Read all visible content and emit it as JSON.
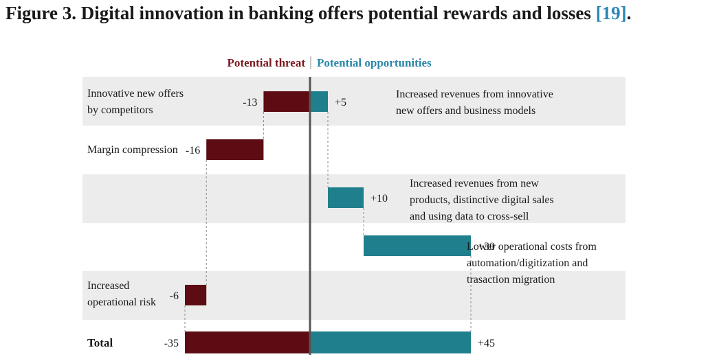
{
  "figure": {
    "title_text": "Figure 3. Digital innovation in banking offers potential rewards and losses ",
    "citation": "[19]",
    "title_end": "."
  },
  "chart_data": {
    "type": "bar",
    "orientation": "horizontal-waterfall",
    "header": {
      "left": "Potential threat",
      "separator": "|",
      "right": "Potential opportunities"
    },
    "colors": {
      "threat": "#5c0c12",
      "opportunity": "#1f7f8c",
      "band": "#ececec",
      "axis": "#555555",
      "header_left": "#7a1a22",
      "header_right": "#2a86a8"
    },
    "rows": [
      {
        "left_label": [
          "Innovative new offers",
          "by competitors"
        ],
        "right_label": [
          "Increased revenues from innovative",
          "new offers and business models"
        ],
        "threat": -13,
        "threat_label": "-13",
        "opportunity": 5,
        "opportunity_label": "+5",
        "banded": true
      },
      {
        "left_label": [
          "Margin compression"
        ],
        "right_label": [],
        "threat": -16,
        "threat_label": "-16",
        "opportunity": 0,
        "opportunity_label": "",
        "banded": false
      },
      {
        "left_label": [],
        "right_label": [
          "Increased revenues from new",
          "products, distinctive digital sales",
          "and using data to cross-sell"
        ],
        "threat": 0,
        "threat_label": "",
        "opportunity": 10,
        "opportunity_label": "+10",
        "banded": true
      },
      {
        "left_label": [],
        "right_label": [
          "Lower operational costs from",
          "automation/digitization and",
          "trasaction migration"
        ],
        "threat": 0,
        "threat_label": "",
        "opportunity": 30,
        "opportunity_label": "+30",
        "banded": false
      },
      {
        "left_label": [
          "Increased",
          "operational risk"
        ],
        "right_label": [],
        "threat": -6,
        "threat_label": "-6",
        "opportunity": 0,
        "opportunity_label": "",
        "banded": true
      }
    ],
    "total": {
      "label": "Total",
      "threat": -35,
      "threat_label": "-35",
      "opportunity": 45,
      "opportunity_label": "+45"
    }
  }
}
